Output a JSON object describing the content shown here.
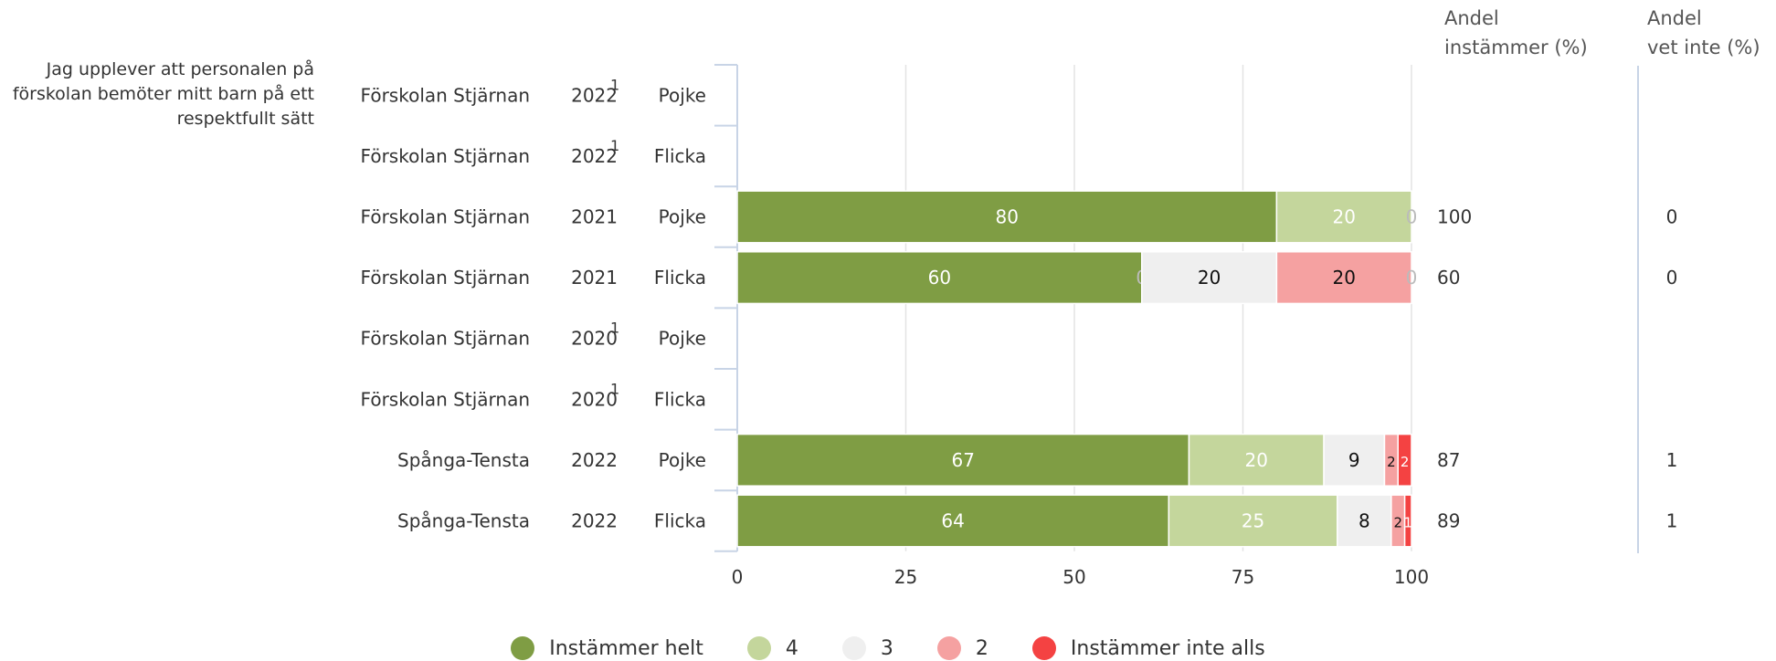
{
  "question": "Jag upplever att personalen på förskolan bemöter mitt barn på ett respektfullt sätt",
  "headers": {
    "andel_instammer": [
      "Andel",
      "instämmer (%)"
    ],
    "andel_vet_inte": [
      "Andel",
      "vet inte (%)"
    ]
  },
  "colors": {
    "Instämmer helt": "#7f9d44",
    "4": "#c4d69c",
    "3": "#efefef",
    "2": "#f5a1a1",
    "Instämmer inte alls": "#f44242"
  },
  "legend": [
    {
      "label": "Instämmer helt",
      "color": "#7f9d44"
    },
    {
      "label": "4",
      "color": "#c4d69c"
    },
    {
      "label": "3",
      "color": "#efefef"
    },
    {
      "label": "2",
      "color": "#f5a1a1"
    },
    {
      "label": "Instämmer inte alls",
      "color": "#f44242"
    }
  ],
  "chart_data": {
    "type": "bar",
    "orientation": "horizontal",
    "stacked": true,
    "title": "",
    "xlabel": "",
    "ylabel": "",
    "xlim": [
      0,
      100
    ],
    "x_ticks": [
      "0",
      "25",
      "50",
      "75",
      "100"
    ],
    "grid": true,
    "legend_position": "bottom",
    "series_names": [
      "Instämmer helt",
      "4",
      "3",
      "2",
      "Instämmer inte alls"
    ],
    "rows": [
      {
        "unit": "Förskolan Stjärnan",
        "year": "2022",
        "footnote": "1",
        "gender": "Pojke",
        "values": null,
        "andel_instammer": "",
        "andel_vet_inte": ""
      },
      {
        "unit": "Förskolan Stjärnan",
        "year": "2022",
        "footnote": "1",
        "gender": "Flicka",
        "values": null,
        "andel_instammer": "",
        "andel_vet_inte": ""
      },
      {
        "unit": "Förskolan Stjärnan",
        "year": "2021",
        "footnote": "",
        "gender": "Pojke",
        "values": [
          80,
          20,
          0,
          0,
          0
        ],
        "labels": [
          "80",
          "20",
          "0",
          "",
          ""
        ],
        "andel_instammer": "100",
        "andel_vet_inte": "0"
      },
      {
        "unit": "Förskolan Stjärnan",
        "year": "2021",
        "footnote": "",
        "gender": "Flicka",
        "values": [
          60,
          0,
          20,
          20,
          0
        ],
        "labels": [
          "60",
          "0",
          "20",
          "20",
          "0"
        ],
        "andel_instammer": "60",
        "andel_vet_inte": "0"
      },
      {
        "unit": "Förskolan Stjärnan",
        "year": "2020",
        "footnote": "1",
        "gender": "Pojke",
        "values": null,
        "andel_instammer": "",
        "andel_vet_inte": ""
      },
      {
        "unit": "Förskolan Stjärnan",
        "year": "2020",
        "footnote": "1",
        "gender": "Flicka",
        "values": null,
        "andel_instammer": "",
        "andel_vet_inte": ""
      },
      {
        "unit": "Spånga-Tensta",
        "year": "2022",
        "footnote": "",
        "gender": "Pojke",
        "values": [
          67,
          20,
          9,
          2,
          2
        ],
        "labels": [
          "67",
          "20",
          "9",
          "2",
          "2"
        ],
        "andel_instammer": "87",
        "andel_vet_inte": "1"
      },
      {
        "unit": "Spånga-Tensta",
        "year": "2022",
        "footnote": "",
        "gender": "Flicka",
        "values": [
          64,
          25,
          8,
          2,
          1
        ],
        "labels": [
          "64",
          "25",
          "8",
          "2",
          "1"
        ],
        "andel_instammer": "89",
        "andel_vet_inte": "1"
      }
    ]
  }
}
